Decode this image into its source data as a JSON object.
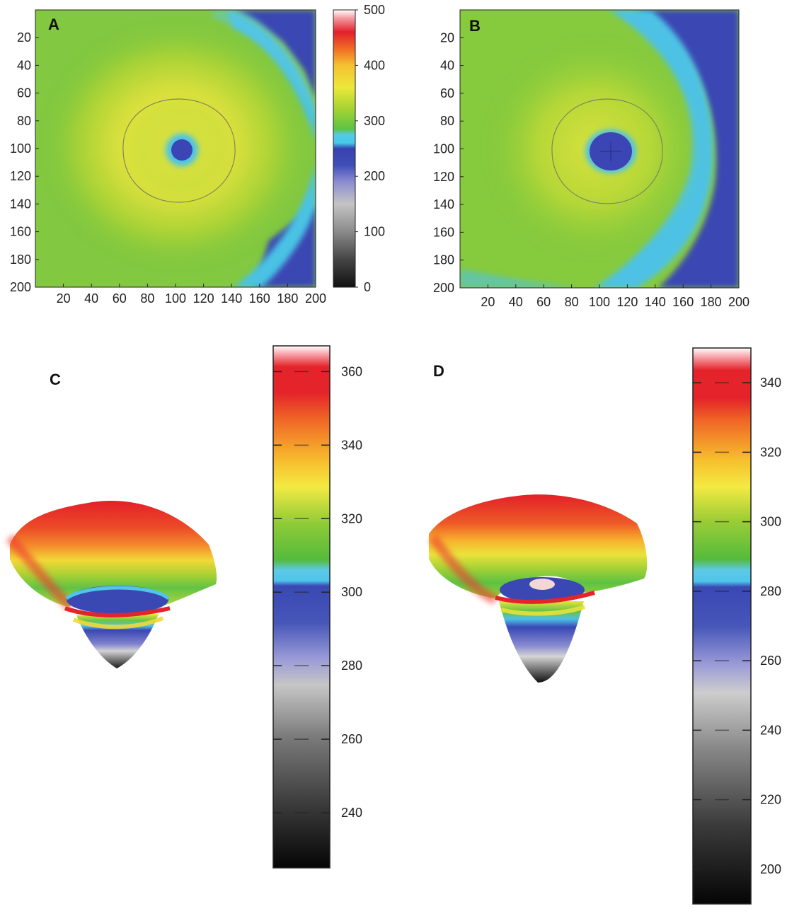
{
  "chart_data": [
    {
      "type": "heatmap",
      "panel_label": "A",
      "x_ticks": [
        "20",
        "40",
        "60",
        "80",
        "100",
        "120",
        "140",
        "160",
        "180",
        "200"
      ],
      "y_ticks": [
        "20",
        "40",
        "60",
        "80",
        "100",
        "120",
        "140",
        "160",
        "180",
        "200"
      ],
      "xlim": [
        0,
        200
      ],
      "ylim": [
        0,
        200
      ],
      "colorbar": {
        "ticks": [
          "500",
          "400",
          "300",
          "200",
          "100",
          "0"
        ],
        "range": [
          0,
          500
        ]
      },
      "features": {
        "center": [
          105,
          102
        ],
        "pit_radius": 8,
        "pit_value": 230,
        "ring_value": 255,
        "ring_radius": 40,
        "peak_value": 360,
        "edge_value": 290
      }
    },
    {
      "type": "heatmap",
      "panel_label": "B",
      "x_ticks": [
        "20",
        "40",
        "60",
        "80",
        "100",
        "120",
        "140",
        "160",
        "180",
        "200"
      ],
      "y_ticks": [
        "20",
        "40",
        "60",
        "80",
        "100",
        "120",
        "140",
        "160",
        "180",
        "200"
      ],
      "xlim": [
        0,
        200
      ],
      "ylim": [
        0,
        200
      ],
      "features": {
        "center": [
          108,
          105
        ],
        "pit_radius": 14,
        "pit_value": 220,
        "ring_value": 250,
        "ring_radius": 40,
        "peak_value": 330,
        "edge_value": 245
      }
    },
    {
      "type": "surface",
      "panel_label": "C",
      "colorbar": {
        "ticks": [
          "360",
          "340",
          "320",
          "300",
          "280",
          "260",
          "240"
        ],
        "range": [
          225,
          367
        ]
      }
    },
    {
      "type": "surface",
      "panel_label": "D",
      "colorbar": {
        "ticks": [
          "340",
          "320",
          "300",
          "280",
          "260",
          "240",
          "220",
          "200"
        ],
        "range": [
          190,
          350
        ]
      }
    }
  ]
}
